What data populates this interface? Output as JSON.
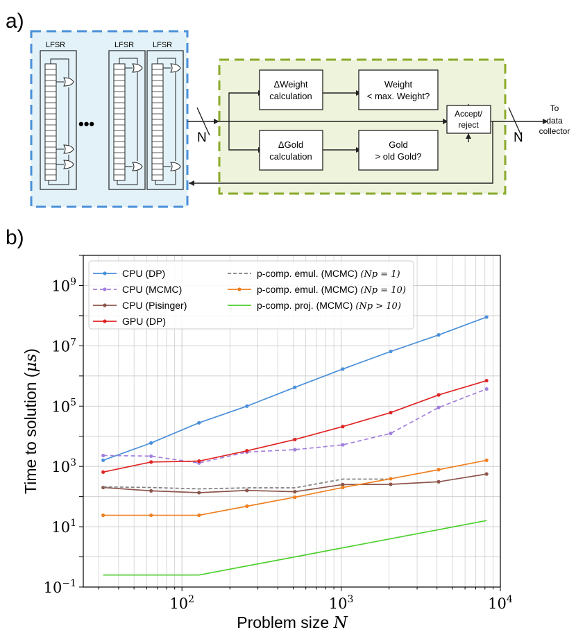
{
  "panel_a": {
    "label": "a)",
    "lfsr_label": "LFSR",
    "ellipsis": "•••",
    "bus_label": "N",
    "blocks": {
      "weight_calc": [
        "ΔWeight",
        "calculation"
      ],
      "gold_calc": [
        "ΔGold",
        "calculation"
      ],
      "weight_check": [
        "Weight",
        "< max. Weight?"
      ],
      "gold_check": [
        "Gold",
        "> old Gold?"
      ],
      "accept_reject": [
        "Accept/",
        "reject"
      ]
    },
    "output_label": [
      "To",
      "data",
      "collector"
    ],
    "colors": {
      "lfsr_fill": "#e3f2f8",
      "lfsr_border": "#4a90d9",
      "logic_fill": "#eef3dc",
      "logic_border": "#8aaa2a"
    }
  },
  "panel_b": {
    "label": "b)"
  },
  "chart_data": {
    "type": "line",
    "xscale": "log",
    "yscale": "log",
    "xlim": [
      24,
      10000
    ],
    "ylim": [
      0.1,
      10000000000
    ],
    "xlabel_text": "Problem size ",
    "xlabel_var": "N",
    "ylabel_text": "Time to solution (",
    "ylabel_unit": "μs",
    "ylabel_close": ")",
    "xtick_values": [
      100,
      1000,
      10000
    ],
    "xtick_bases": [
      "10",
      "10",
      "10"
    ],
    "xtick_exps": [
      "2",
      "3",
      "4"
    ],
    "ytick_values": [
      0.1,
      10,
      1000,
      100000,
      10000000,
      1000000000
    ],
    "ytick_bases": [
      "10",
      "10",
      "10",
      "10",
      "10",
      "10"
    ],
    "ytick_exps": [
      "−1",
      "1",
      "3",
      "5",
      "7",
      "9"
    ],
    "grid": true,
    "legend_position": "top-left",
    "series": [
      {
        "name": "CPU (DP)",
        "name_var": "",
        "color": "#4a90d9",
        "dash": "",
        "marker": true,
        "x": [
          32,
          64,
          128,
          256,
          512,
          1024,
          2048,
          4096,
          8192
        ],
        "y": [
          1600,
          6000,
          28000,
          100000,
          420000,
          1700000,
          6500000,
          23000000,
          90000000
        ]
      },
      {
        "name": "CPU (MCMC)",
        "name_var": "",
        "color": "#a27fdd",
        "dash": "6,4",
        "marker": true,
        "x": [
          32,
          64,
          128,
          256,
          512,
          1024,
          2048,
          4096,
          8192
        ],
        "y": [
          2300,
          2200,
          1300,
          3000,
          3600,
          5200,
          12500,
          90000,
          370000
        ]
      },
      {
        "name": "CPU (Pisinger)",
        "name_var": "",
        "color": "#8c564b",
        "dash": "",
        "marker": true,
        "x": [
          32,
          64,
          128,
          256,
          512,
          1024,
          2048,
          4096,
          8192
        ],
        "y": [
          200,
          155,
          135,
          160,
          145,
          250,
          255,
          310,
          560
        ]
      },
      {
        "name": "GPU (DP)",
        "name_var": "",
        "color": "#e02424",
        "dash": "",
        "marker": true,
        "x": [
          32,
          64,
          128,
          256,
          512,
          1024,
          2048,
          4096,
          8192
        ],
        "y": [
          650,
          1400,
          1500,
          3300,
          7800,
          21000,
          61000,
          235000,
          700000
        ]
      },
      {
        "name": "p-comp. emul. (MCMC) ",
        "name_var": "(Np = 1)",
        "color": "#7f7f7f",
        "dash": "5,3",
        "marker": false,
        "x": [
          32,
          64,
          128,
          256,
          512,
          1024,
          2048
        ],
        "y": [
          210,
          200,
          180,
          195,
          195,
          380,
          380
        ]
      },
      {
        "name": "p-comp. emul. (MCMC) ",
        "name_var": "(Np = 10)",
        "color": "#f07f1e",
        "dash": "",
        "marker": true,
        "x": [
          32,
          64,
          128,
          256,
          512,
          1024,
          2048,
          4096,
          8192
        ],
        "y": [
          24,
          24,
          24,
          48,
          95,
          200,
          390,
          780,
          1600
        ]
      },
      {
        "name": "p-comp. proj. (MCMC) ",
        "name_var": "(Np > 10)",
        "color": "#4ccf2c",
        "dash": "",
        "marker": false,
        "x": [
          32,
          128,
          8192
        ],
        "y": [
          0.25,
          0.25,
          16
        ]
      }
    ]
  }
}
